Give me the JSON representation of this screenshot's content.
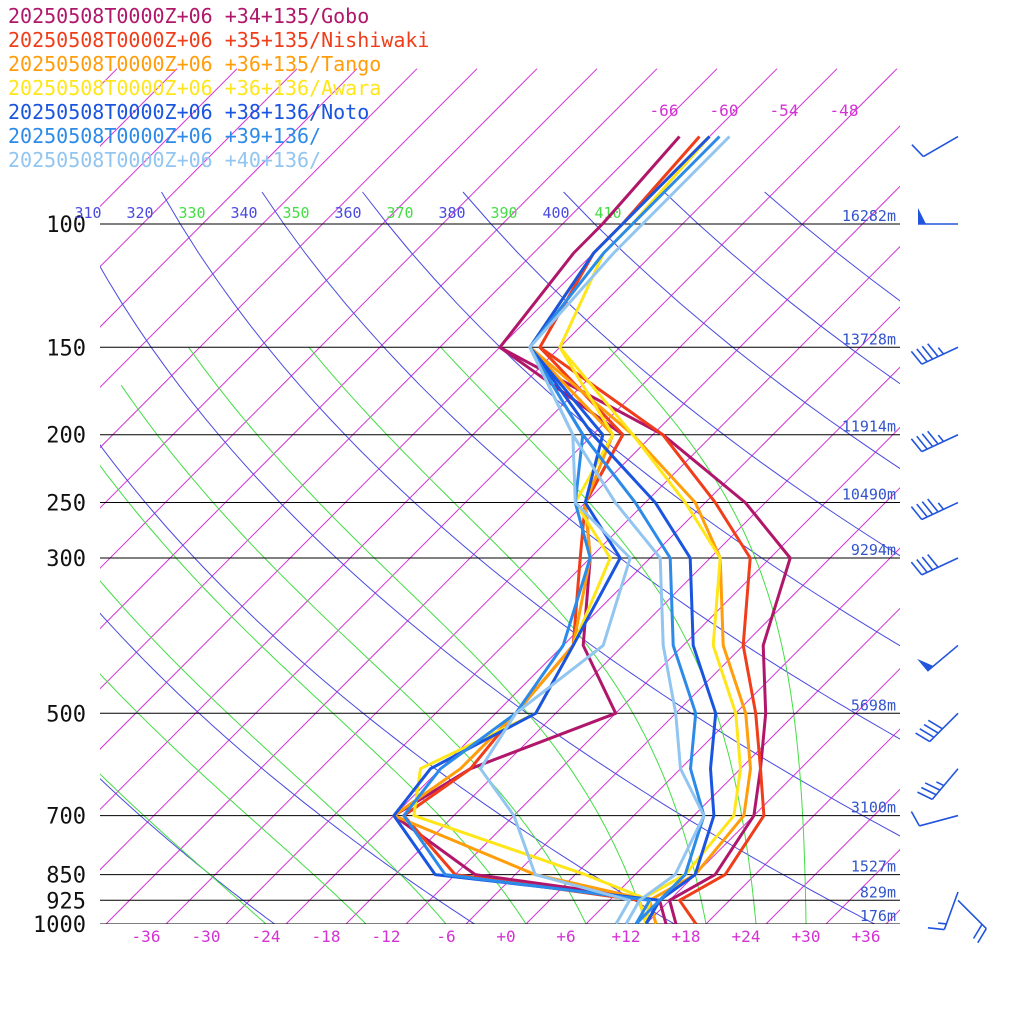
{
  "colors": {
    "isotherm": "#d433d4",
    "theta_dry": "#4a4ae0",
    "theta_moist": "#44dd44",
    "pressure_line": "#000000",
    "height_label": "#3355cc",
    "wind_barb": "#2255dd"
  },
  "chart_data": {
    "type": "line",
    "subtype": "skew-T log-P sounding",
    "title": "",
    "xlabel": "",
    "ylabel": "",
    "x_unit": "degC",
    "y_unit": "hPa",
    "xlim": [
      -40,
      40
    ],
    "ylim": [
      1000,
      100
    ],
    "y_scale": "log",
    "legend_position": "top-left",
    "pressure_levels": [
      "100",
      "150",
      "200",
      "250",
      "300",
      "500",
      "700",
      "850",
      "925",
      "1000"
    ],
    "height_labels": [
      {
        "p": 100,
        "text": "16282m"
      },
      {
        "p": 150,
        "text": "13728m"
      },
      {
        "p": 200,
        "text": "11914m"
      },
      {
        "p": 250,
        "text": "10490m"
      },
      {
        "p": 300,
        "text": "9294m"
      },
      {
        "p": 500,
        "text": "5698m"
      },
      {
        "p": 700,
        "text": "3100m"
      },
      {
        "p": 850,
        "text": "1527m"
      },
      {
        "p": 925,
        "text": "829m"
      },
      {
        "p": 1000,
        "text": "176m"
      }
    ],
    "x_tick_labels": [
      {
        "t": -36,
        "text": "-36"
      },
      {
        "t": -30,
        "text": "-30"
      },
      {
        "t": -24,
        "text": "-24"
      },
      {
        "t": -18,
        "text": "-18"
      },
      {
        "t": -12,
        "text": "-12"
      },
      {
        "t": -6,
        "text": "-6"
      },
      {
        "t": 0,
        "text": "+0"
      },
      {
        "t": 6,
        "text": "+6"
      },
      {
        "t": 12,
        "text": "+12"
      },
      {
        "t": 18,
        "text": "+18"
      },
      {
        "t": 24,
        "text": "+24"
      },
      {
        "t": 30,
        "text": "+30"
      },
      {
        "t": 36,
        "text": "+36"
      }
    ],
    "upper_isotherm_labels": [
      {
        "t": -66,
        "text": "-66"
      },
      {
        "t": -60,
        "text": "-60"
      },
      {
        "t": -54,
        "text": "-54"
      },
      {
        "t": -48,
        "text": "-48"
      }
    ],
    "theta_labels": [
      {
        "th": 310,
        "text": "310",
        "kind": "dry"
      },
      {
        "th": 320,
        "text": "320",
        "kind": "dry"
      },
      {
        "th": 330,
        "text": "330",
        "kind": "moist"
      },
      {
        "th": 340,
        "text": "340",
        "kind": "dry"
      },
      {
        "th": 350,
        "text": "350",
        "kind": "moist"
      },
      {
        "th": 360,
        "text": "360",
        "kind": "dry"
      },
      {
        "th": 370,
        "text": "370",
        "kind": "moist"
      },
      {
        "th": 380,
        "text": "380",
        "kind": "dry"
      },
      {
        "th": 390,
        "text": "390",
        "kind": "moist"
      },
      {
        "th": 400,
        "text": "400",
        "kind": "dry"
      },
      {
        "th": 410,
        "text": "410",
        "kind": "moist"
      }
    ],
    "series": [
      {
        "name": "20250508T0000Z+06 +34+135/Gobo",
        "color": "#b0176a",
        "temperature": [
          [
            1000,
            17
          ],
          [
            925,
            14
          ],
          [
            850,
            16
          ],
          [
            700,
            14
          ],
          [
            600,
            10
          ],
          [
            500,
            5
          ],
          [
            400,
            -2
          ],
          [
            300,
            -8
          ],
          [
            250,
            -18
          ],
          [
            200,
            -33
          ],
          [
            150,
            -58
          ],
          [
            110,
            -60
          ],
          [
            100,
            -60
          ],
          [
            75,
            -61
          ]
        ],
        "dewpoint": [
          [
            1000,
            16
          ],
          [
            925,
            13
          ],
          [
            850,
            -8
          ],
          [
            700,
            -22
          ],
          [
            600,
            -19
          ],
          [
            500,
            -10
          ],
          [
            400,
            -20
          ],
          [
            300,
            -28
          ],
          [
            250,
            -34
          ],
          [
            200,
            -37
          ],
          [
            150,
            -58
          ]
        ]
      },
      {
        "name": "20250508T0000Z+06 +35+135/Nishiwaki",
        "color": "#f03d1a",
        "temperature": [
          [
            1000,
            19
          ],
          [
            925,
            15
          ],
          [
            850,
            17
          ],
          [
            700,
            15
          ],
          [
            600,
            10
          ],
          [
            500,
            4
          ],
          [
            400,
            -4
          ],
          [
            300,
            -12
          ],
          [
            250,
            -21
          ],
          [
            200,
            -33
          ],
          [
            150,
            -54
          ],
          [
            110,
            -58
          ],
          [
            100,
            -58
          ],
          [
            75,
            -59
          ]
        ],
        "dewpoint": [
          [
            1000,
            14
          ],
          [
            925,
            11
          ],
          [
            850,
            -10
          ],
          [
            700,
            -21
          ],
          [
            600,
            -19
          ],
          [
            500,
            -20
          ],
          [
            400,
            -21
          ],
          [
            300,
            -29
          ],
          [
            250,
            -34
          ],
          [
            200,
            -37
          ],
          [
            150,
            -54
          ]
        ]
      },
      {
        "name": "20250508T0000Z+06 +36+135/Tango",
        "color": "#ff9d0a",
        "temperature": [
          [
            1000,
            15
          ],
          [
            925,
            12
          ],
          [
            850,
            14
          ],
          [
            700,
            13
          ],
          [
            600,
            9
          ],
          [
            500,
            3
          ],
          [
            400,
            -6
          ],
          [
            300,
            -15
          ],
          [
            250,
            -23
          ],
          [
            200,
            -36
          ],
          [
            150,
            -55
          ],
          [
            110,
            -58
          ],
          [
            100,
            -58
          ],
          [
            75,
            -58
          ]
        ],
        "dewpoint": [
          [
            1000,
            14
          ],
          [
            925,
            12
          ],
          [
            850,
            -2
          ],
          [
            700,
            -22
          ],
          [
            600,
            -20
          ],
          [
            500,
            -20
          ],
          [
            400,
            -21
          ],
          [
            300,
            -28
          ],
          [
            250,
            -34
          ],
          [
            200,
            -38
          ],
          [
            150,
            -55
          ]
        ]
      },
      {
        "name": "20250508T0000Z+06 +36+136/Awara",
        "color": "#ffe61a",
        "temperature": [
          [
            1000,
            14
          ],
          [
            925,
            11
          ],
          [
            850,
            13
          ],
          [
            700,
            12
          ],
          [
            600,
            8
          ],
          [
            500,
            2
          ],
          [
            400,
            -7
          ],
          [
            300,
            -15
          ],
          [
            250,
            -24
          ],
          [
            200,
            -36
          ],
          [
            150,
            -52
          ],
          [
            110,
            -57
          ],
          [
            100,
            -57
          ],
          [
            75,
            -58
          ]
        ],
        "dewpoint": [
          [
            1000,
            14
          ],
          [
            925,
            12
          ],
          [
            850,
            3
          ],
          [
            700,
            -20
          ],
          [
            600,
            -24
          ],
          [
            500,
            -18
          ],
          [
            400,
            -21
          ],
          [
            300,
            -26
          ],
          [
            250,
            -35
          ],
          [
            200,
            -38
          ],
          [
            150,
            -52
          ]
        ]
      },
      {
        "name": "20250508T0000Z+06 +38+136/Noto",
        "color": "#1a55e0",
        "temperature": [
          [
            1000,
            14
          ],
          [
            925,
            13
          ],
          [
            850,
            14
          ],
          [
            700,
            10
          ],
          [
            600,
            5
          ],
          [
            500,
            0
          ],
          [
            400,
            -9
          ],
          [
            300,
            -18
          ],
          [
            250,
            -27
          ],
          [
            200,
            -40
          ],
          [
            150,
            -55
          ],
          [
            110,
            -58
          ],
          [
            100,
            -58
          ],
          [
            75,
            -58
          ]
        ],
        "dewpoint": [
          [
            1000,
            14
          ],
          [
            925,
            13
          ],
          [
            850,
            -12
          ],
          [
            700,
            -22
          ],
          [
            600,
            -23
          ],
          [
            500,
            -18
          ],
          [
            400,
            -21
          ],
          [
            300,
            -25
          ],
          [
            250,
            -34
          ],
          [
            200,
            -39
          ],
          [
            150,
            -55
          ]
        ]
      },
      {
        "name": "20250508T0000Z+06 +39+136/",
        "color": "#2c8be8",
        "temperature": [
          [
            1000,
            13
          ],
          [
            925,
            13
          ],
          [
            850,
            13
          ],
          [
            700,
            9
          ],
          [
            600,
            3
          ],
          [
            500,
            -2
          ],
          [
            400,
            -11
          ],
          [
            300,
            -20
          ],
          [
            250,
            -29
          ],
          [
            200,
            -41
          ],
          [
            150,
            -55
          ],
          [
            110,
            -57
          ],
          [
            100,
            -57
          ],
          [
            75,
            -57
          ]
        ],
        "dewpoint": [
          [
            1000,
            13
          ],
          [
            925,
            12
          ],
          [
            850,
            -11
          ],
          [
            700,
            -21
          ],
          [
            600,
            -22
          ],
          [
            500,
            -20
          ],
          [
            400,
            -22
          ],
          [
            300,
            -28
          ],
          [
            250,
            -35
          ],
          [
            200,
            -41
          ],
          [
            150,
            -55
          ]
        ]
      },
      {
        "name": "20250508T0000Z+06 +40+136/",
        "color": "#92c5f0",
        "temperature": [
          [
            1000,
            12
          ],
          [
            925,
            11
          ],
          [
            850,
            12
          ],
          [
            700,
            9
          ],
          [
            600,
            2
          ],
          [
            500,
            -4
          ],
          [
            400,
            -12
          ],
          [
            300,
            -21
          ],
          [
            250,
            -31
          ],
          [
            200,
            -42
          ],
          [
            150,
            -55
          ],
          [
            110,
            -56
          ],
          [
            100,
            -56
          ],
          [
            75,
            -56
          ]
        ],
        "dewpoint": [
          [
            1000,
            11
          ],
          [
            925,
            10
          ],
          [
            850,
            -2
          ],
          [
            700,
            -10
          ],
          [
            600,
            -18
          ],
          [
            500,
            -20
          ],
          [
            400,
            -18
          ],
          [
            300,
            -24
          ],
          [
            250,
            -35
          ],
          [
            200,
            -42
          ],
          [
            150,
            -55
          ]
        ]
      }
    ],
    "wind_barbs": [
      {
        "p": 75,
        "dir": 240,
        "speed": 10
      },
      {
        "p": 100,
        "dir": 270,
        "speed": 50
      },
      {
        "p": 150,
        "dir": 245,
        "speed": 45
      },
      {
        "p": 200,
        "dir": 245,
        "speed": 45
      },
      {
        "p": 250,
        "dir": 245,
        "speed": 45
      },
      {
        "p": 300,
        "dir": 245,
        "speed": 40
      },
      {
        "p": 400,
        "dir": 230,
        "speed": 50
      },
      {
        "p": 500,
        "dir": 225,
        "speed": 40
      },
      {
        "p": 600,
        "dir": 220,
        "speed": 35
      },
      {
        "p": 700,
        "dir": 255,
        "speed": 10
      },
      {
        "p": 900,
        "dir": 200,
        "speed": 15
      },
      {
        "p": 925,
        "dir": 135,
        "speed": 20
      }
    ]
  }
}
